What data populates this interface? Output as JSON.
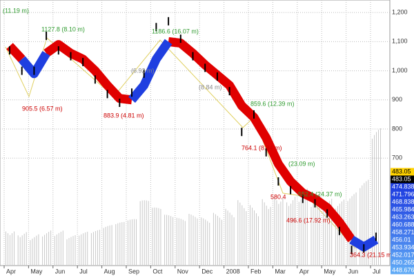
{
  "chart_data": {
    "type": "stock",
    "categories": [
      "Apr",
      null,
      "May",
      null,
      "Jun",
      null,
      "Jul",
      null,
      "Aug",
      null,
      "Sep",
      null,
      "Oct",
      null,
      "Nov",
      null,
      "Dec",
      null,
      "2008",
      null,
      "Feb",
      null,
      "Mar",
      null,
      "Apr",
      null,
      "May",
      null,
      "Jun",
      null,
      "Jul"
    ],
    "values": [
      1070,
      1000,
      1000,
      1120,
      1070,
      1050,
      1030,
      970,
      920,
      890,
      925,
      990,
      1150,
      1170,
      1110,
      1050,
      1010,
      980,
      930,
      790,
      850,
      720,
      620,
      590,
      560,
      545,
      510,
      450,
      385,
      390,
      430
    ],
    "color": "#000000",
    "ribbon": [
      {
        "color": "#e00000",
        "values": [
          1085,
          1040,
          null,
          1060,
          1090,
          1060,
          1040,
          1000,
          950,
          905,
          900,
          null,
          null,
          1100,
          1095,
          1060,
          1020,
          985,
          950,
          880,
          840,
          770,
          680,
          620,
          580,
          560,
          530,
          480,
          420,
          null,
          null
        ]
      },
      {
        "color": "#1f3fe0",
        "values": [
          null,
          1040,
          990,
          1060,
          null,
          null,
          null,
          null,
          null,
          null,
          900,
          950,
          1040,
          1100,
          null,
          null,
          null,
          null,
          null,
          null,
          null,
          null,
          null,
          null,
          null,
          null,
          null,
          null,
          420,
          395,
          420
        ]
      }
    ],
    "volume": [
      30,
      28,
      25,
      27,
      26,
      22,
      24,
      25,
      28,
      30,
      32,
      45,
      40,
      35,
      33,
      36,
      34,
      38,
      42,
      50,
      48,
      55,
      60,
      58,
      62,
      55,
      50,
      48,
      52,
      60,
      95
    ],
    "volume_color": "#c8c8c8",
    "ylim": [
      331,
      1243
    ],
    "yticks": [
      700,
      800,
      900,
      {
        "value": 1000,
        "label": "1,000"
      },
      {
        "value": 1100,
        "label": "1,100"
      },
      {
        "value": 1200,
        "label": "1,200"
      }
    ],
    "grid": true,
    "annotations": [
      {
        "text": "(11.19 m)",
        "color": "#2e9a2e"
      },
      {
        "text": "1127.8 (8.10 m)",
        "color": "#2e9a2e"
      },
      {
        "text": "1186.6 (16.07 m)",
        "color": "#2e9a2e"
      },
      {
        "text": "905.5 (6.57 m)",
        "color": "#cc0000"
      },
      {
        "text": "883.9 (4.81 m)",
        "color": "#cc0000"
      },
      {
        "text": "(6.92 m)",
        "color": "#888888"
      },
      {
        "text": "(8.84 m)",
        "color": "#888888"
      },
      {
        "text": "859.6 (12.39 m)",
        "color": "#2e9a2e"
      },
      {
        "text": "764.1 (8.84 m)",
        "color": "#cc0000"
      },
      {
        "text": "(23.09 m)",
        "color": "#2e9a2e"
      },
      {
        "text": "552.4 (24.37 m)",
        "color": "#2e9a2e"
      },
      {
        "text": "580.4",
        "color": "#cc0000"
      },
      {
        "text": "496.6 (17.92 m)",
        "color": "#cc0000"
      },
      {
        "text": "364.3 (21.15 m)",
        "color": "#cc0000"
      }
    ],
    "price_labels": [
      {
        "value": 483.05,
        "color": "#ffd200",
        "text_color": "#000000"
      },
      {
        "value": 483.05,
        "color": "#000000",
        "text_color": "#ffffff"
      },
      {
        "value": 474.838,
        "color": "#2040e0",
        "text_color": "#ffffff"
      },
      {
        "value": 471.796,
        "color": "#2446e2",
        "text_color": "#ffffff"
      },
      {
        "value": 468.838,
        "color": "#2a50e4",
        "text_color": "#ffffff"
      },
      {
        "value": 465.984,
        "color": "#305ae6",
        "text_color": "#ffffff"
      },
      {
        "value": 463.263,
        "color": "#3664e8",
        "text_color": "#ffffff"
      },
      {
        "value": 460.688,
        "color": "#3c6eea",
        "text_color": "#ffffff"
      },
      {
        "value": 458.271,
        "color": "#4278ec",
        "text_color": "#ffffff"
      },
      {
        "value": 456.01,
        "color": "#4882ee",
        "text_color": "#ffffff"
      },
      {
        "value": 453.934,
        "color": "#4e8cf0",
        "text_color": "#ffffff"
      },
      {
        "value": 452.017,
        "color": "#5496f2",
        "text_color": "#ffffff"
      },
      {
        "value": 450.265,
        "color": "#5aa0f4",
        "text_color": "#ffffff"
      },
      {
        "value": 448.676,
        "color": "#60aaf6",
        "text_color": "#ffffff"
      }
    ]
  }
}
